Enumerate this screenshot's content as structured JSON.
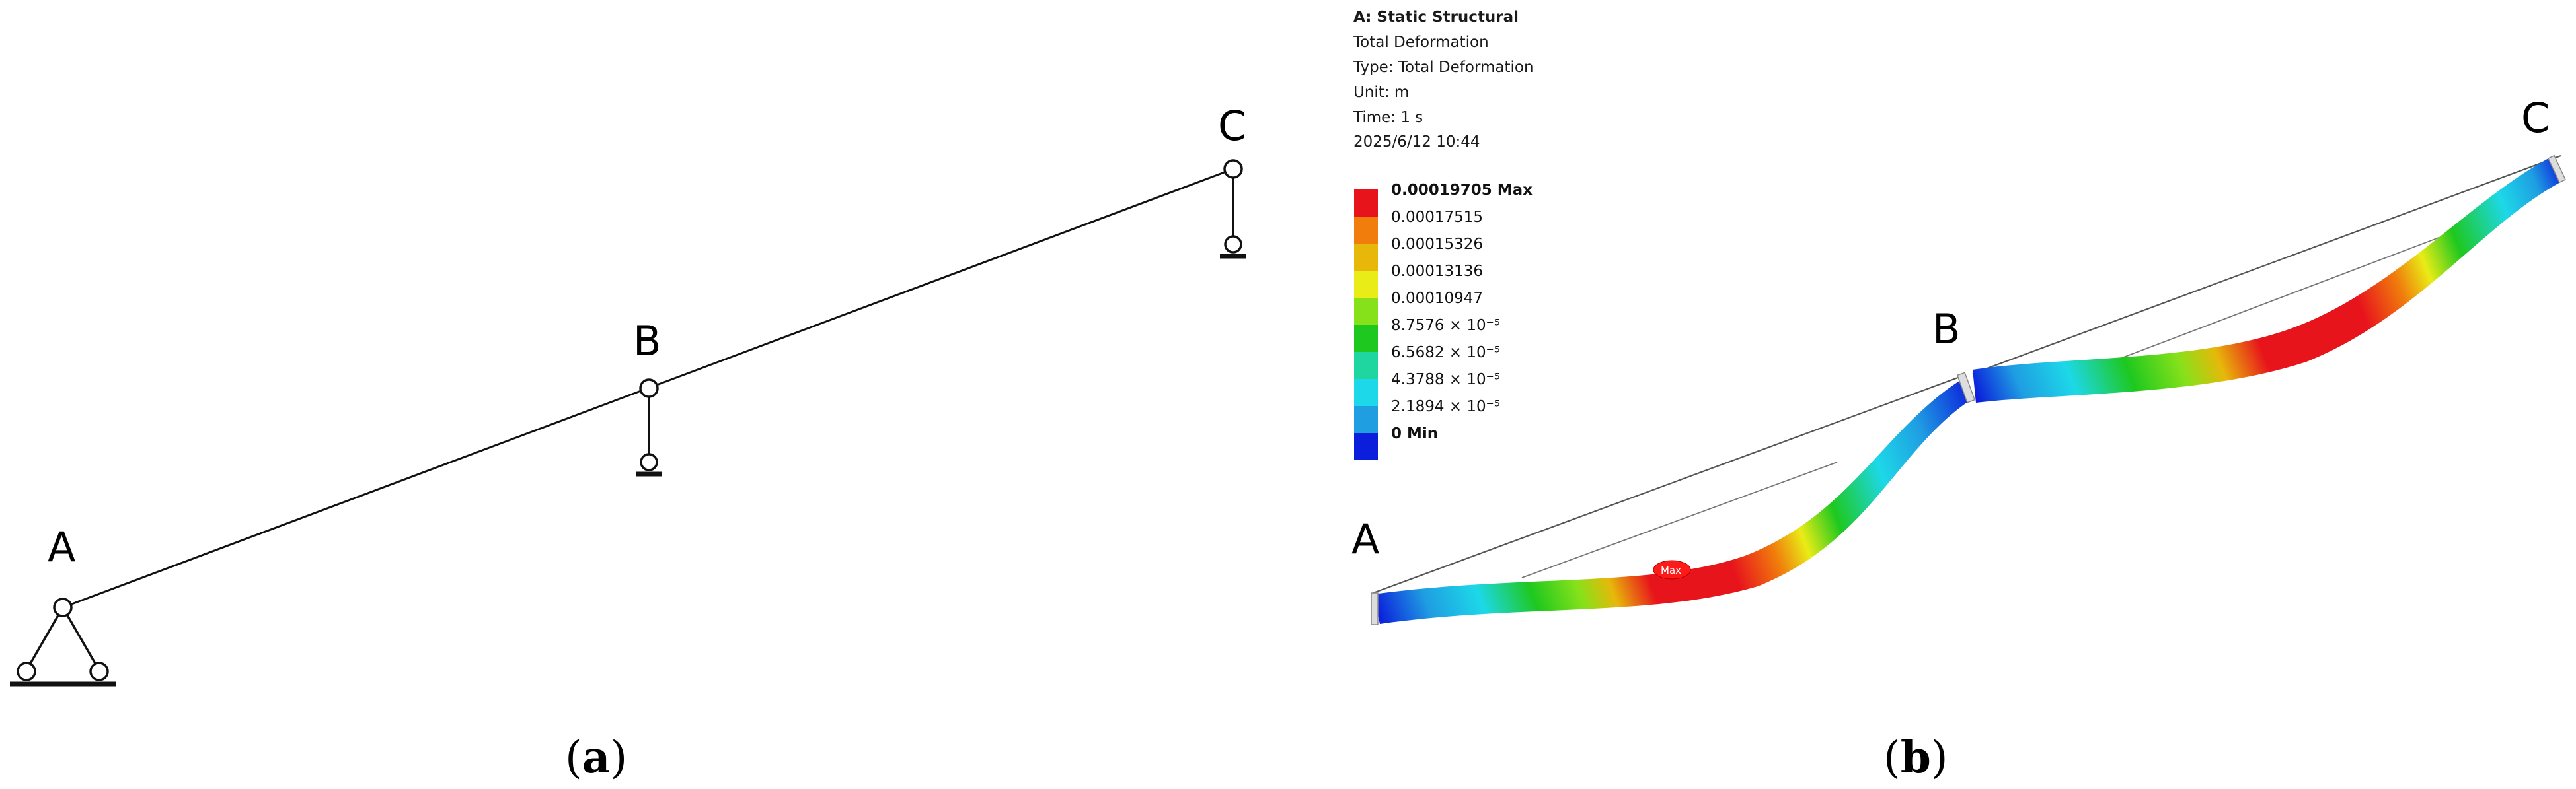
{
  "panel_a": {
    "labels": {
      "a": "A",
      "b": "B",
      "c": "C"
    },
    "caption": {
      "open": "(",
      "letter": "a",
      "close": ")"
    }
  },
  "panel_b": {
    "labels": {
      "a": "A",
      "b": "B",
      "c": "C"
    },
    "caption": {
      "open": "(",
      "letter": "b",
      "close": ")"
    },
    "header": [
      "A: Static Structural",
      "Total Deformation",
      "Type: Total Deformation",
      "Unit: m",
      "Time: 1 s",
      "2025/6/12 10:44"
    ],
    "legend": [
      {
        "label": "0.00019705 Max",
        "color": "#e8141c"
      },
      {
        "label": "0.00017515",
        "color": "#f07d0c"
      },
      {
        "label": "0.00015326",
        "color": "#e7b80a"
      },
      {
        "label": "0.00013136",
        "color": "#e9ec16"
      },
      {
        "label": "0.00010947",
        "color": "#86e11a"
      },
      {
        "label": "8.7576 × 10⁻⁵",
        "color": "#1ec81f"
      },
      {
        "label": "6.5682 × 10⁻⁵",
        "color": "#1fd6a0"
      },
      {
        "label": "4.3788 × 10⁻⁵",
        "color": "#1dd8e8"
      },
      {
        "label": "2.1894 × 10⁻⁵",
        "color": "#1f9ee2"
      },
      {
        "label": "0 Min",
        "color": "#0b1edb"
      }
    ],
    "max_marker": "Max"
  }
}
